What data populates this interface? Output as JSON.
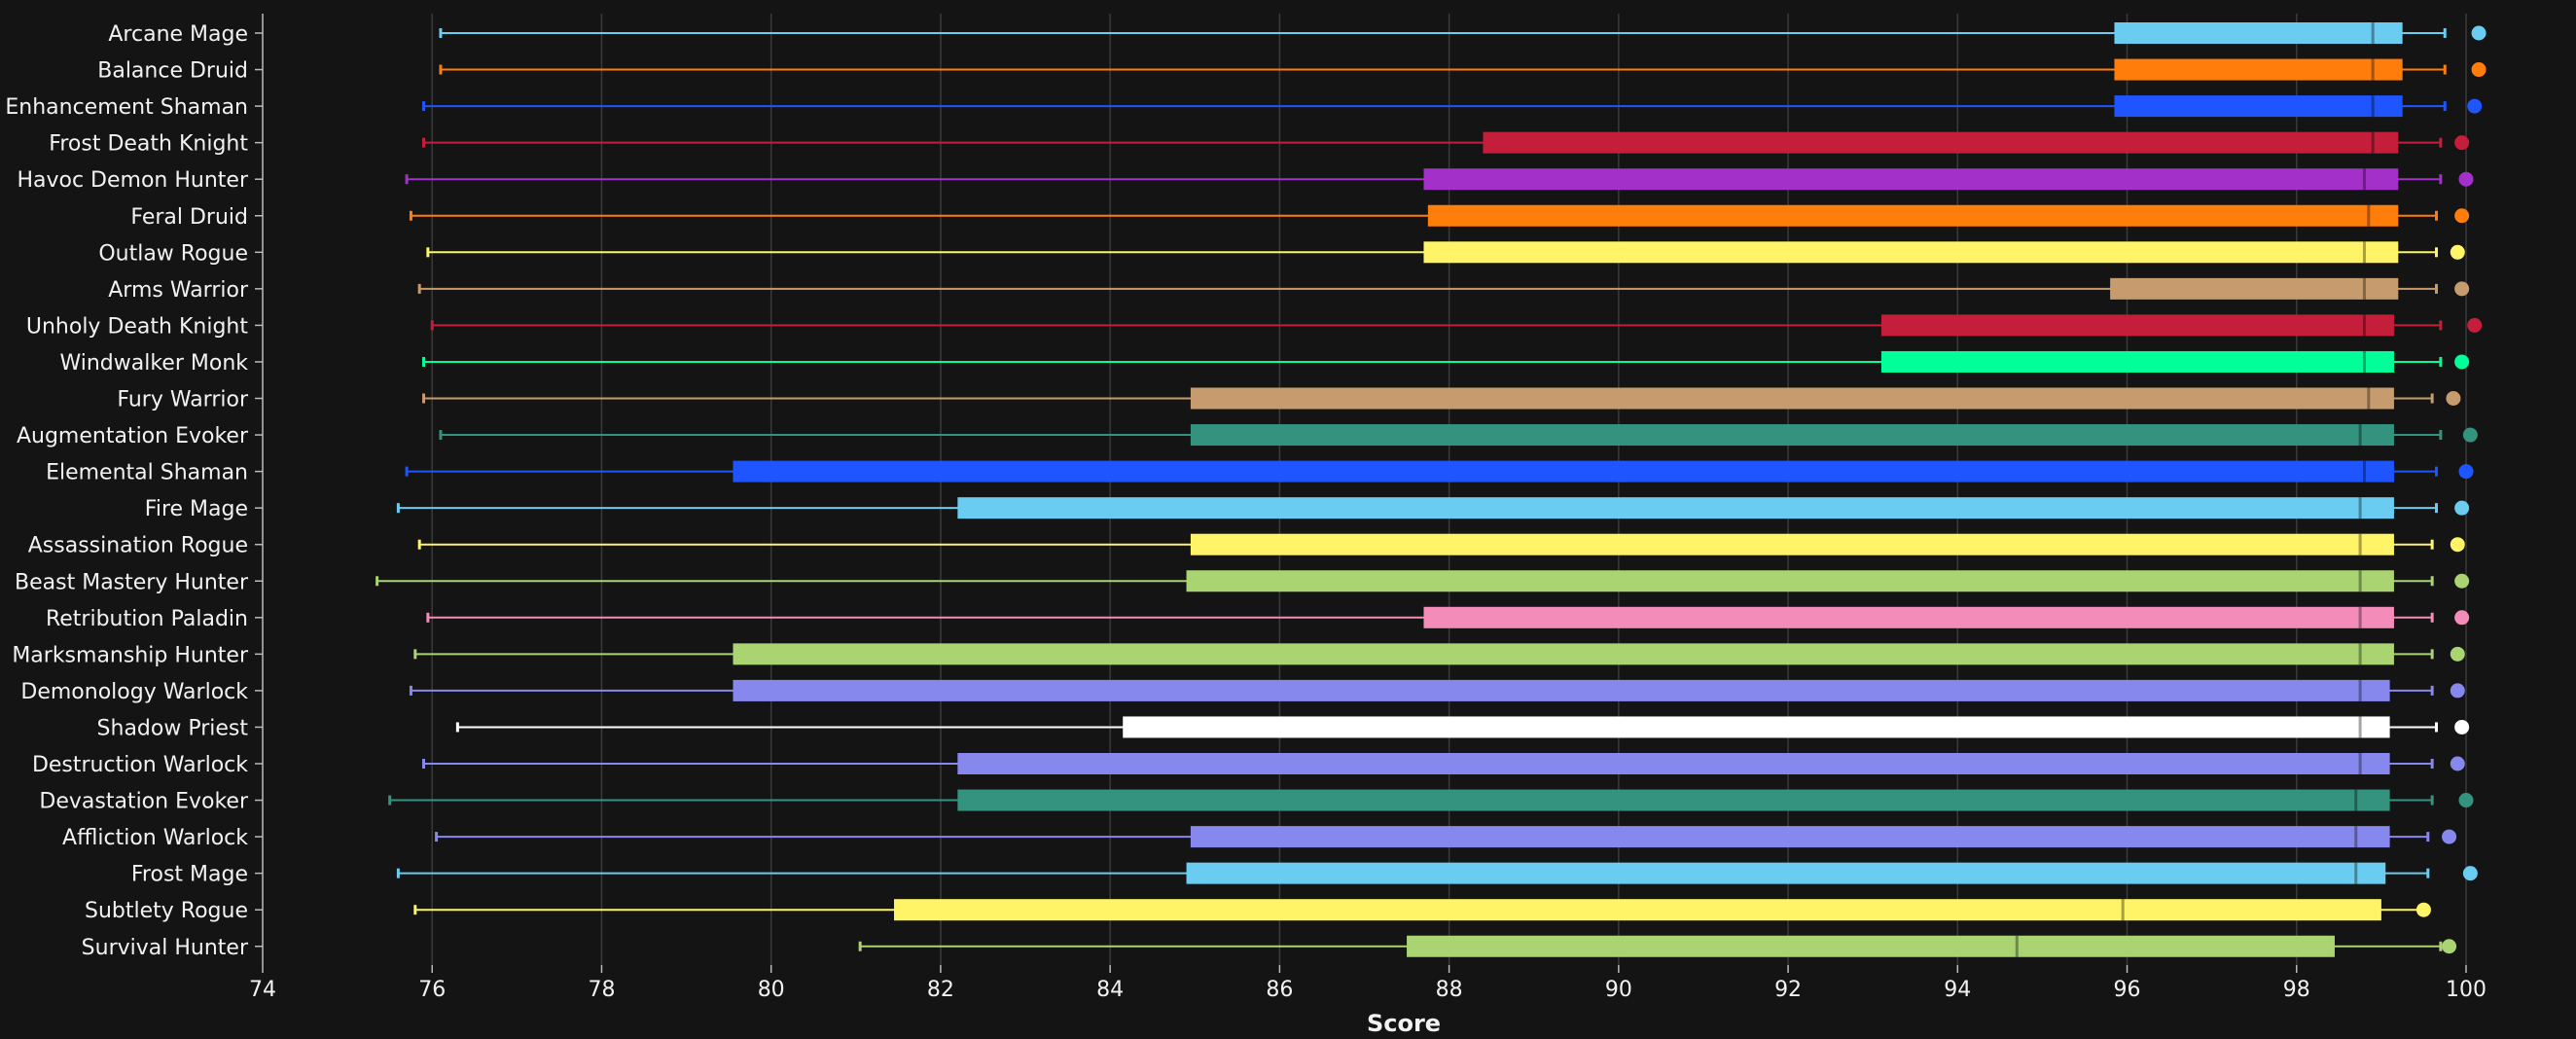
{
  "chart_data": {
    "type": "boxplot",
    "title": "",
    "xlabel": "Score",
    "ylabel": "",
    "xlim": [
      74,
      100
    ],
    "xticks": [
      74,
      76,
      78,
      80,
      82,
      84,
      86,
      88,
      90,
      92,
      94,
      96,
      98,
      100
    ],
    "grid": "vertical",
    "background": "#141414",
    "series": [
      {
        "name": "Arcane Mage",
        "color": "#69CCF0",
        "min": 76.1,
        "q1": 95.85,
        "median": 98.9,
        "q3": 99.25,
        "max": 99.75,
        "point": 100.15
      },
      {
        "name": "Balance Druid",
        "color": "#FF7D0A",
        "min": 76.1,
        "q1": 95.85,
        "median": 98.9,
        "q3": 99.25,
        "max": 99.75,
        "point": 100.15
      },
      {
        "name": "Enhancement Shaman",
        "color": "#1F55FF",
        "min": 75.9,
        "q1": 95.85,
        "median": 98.9,
        "q3": 99.25,
        "max": 99.75,
        "point": 100.1
      },
      {
        "name": "Frost Death Knight",
        "color": "#C41E3A",
        "min": 75.9,
        "q1": 88.4,
        "median": 98.9,
        "q3": 99.2,
        "max": 99.7,
        "point": 99.95
      },
      {
        "name": "Havoc Demon Hunter",
        "color": "#A330C9",
        "min": 75.7,
        "q1": 87.7,
        "median": 98.8,
        "q3": 99.2,
        "max": 99.7,
        "point": 100.0
      },
      {
        "name": "Feral Druid",
        "color": "#FF7D0A",
        "min": 75.75,
        "q1": 87.75,
        "median": 98.85,
        "q3": 99.2,
        "max": 99.65,
        "point": 99.95
      },
      {
        "name": "Outlaw Rogue",
        "color": "#FFF468",
        "min": 75.95,
        "q1": 87.7,
        "median": 98.8,
        "q3": 99.2,
        "max": 99.65,
        "point": 99.9
      },
      {
        "name": "Arms Warrior",
        "color": "#C69B6D",
        "min": 75.85,
        "q1": 95.8,
        "median": 98.8,
        "q3": 99.2,
        "max": 99.65,
        "point": 99.95
      },
      {
        "name": "Unholy Death Knight",
        "color": "#C41E3A",
        "min": 76.0,
        "q1": 93.1,
        "median": 98.8,
        "q3": 99.15,
        "max": 99.7,
        "point": 100.1
      },
      {
        "name": "Windwalker Monk",
        "color": "#00FF98",
        "min": 75.9,
        "q1": 93.1,
        "median": 98.8,
        "q3": 99.15,
        "max": 99.7,
        "point": 99.95
      },
      {
        "name": "Fury Warrior",
        "color": "#C69B6D",
        "min": 75.9,
        "q1": 84.95,
        "median": 98.85,
        "q3": 99.15,
        "max": 99.6,
        "point": 99.85
      },
      {
        "name": "Augmentation Evoker",
        "color": "#33937F",
        "min": 76.1,
        "q1": 84.95,
        "median": 98.75,
        "q3": 99.15,
        "max": 99.7,
        "point": 100.05
      },
      {
        "name": "Elemental Shaman",
        "color": "#1F55FF",
        "min": 75.7,
        "q1": 79.55,
        "median": 98.8,
        "q3": 99.15,
        "max": 99.65,
        "point": 100.0
      },
      {
        "name": "Fire Mage",
        "color": "#69CCF0",
        "min": 75.6,
        "q1": 82.2,
        "median": 98.75,
        "q3": 99.15,
        "max": 99.65,
        "point": 99.95
      },
      {
        "name": "Assassination Rogue",
        "color": "#FFF468",
        "min": 75.85,
        "q1": 84.95,
        "median": 98.75,
        "q3": 99.15,
        "max": 99.6,
        "point": 99.9
      },
      {
        "name": "Beast Mastery Hunter",
        "color": "#AAD372",
        "min": 75.35,
        "q1": 84.9,
        "median": 98.75,
        "q3": 99.15,
        "max": 99.6,
        "point": 99.95
      },
      {
        "name": "Retribution Paladin",
        "color": "#F48CBA",
        "min": 75.95,
        "q1": 87.7,
        "median": 98.75,
        "q3": 99.15,
        "max": 99.6,
        "point": 99.95
      },
      {
        "name": "Marksmanship Hunter",
        "color": "#AAD372",
        "min": 75.8,
        "q1": 79.55,
        "median": 98.75,
        "q3": 99.15,
        "max": 99.6,
        "point": 99.9
      },
      {
        "name": "Demonology Warlock",
        "color": "#8788EE",
        "min": 75.75,
        "q1": 79.55,
        "median": 98.75,
        "q3": 99.1,
        "max": 99.6,
        "point": 99.9
      },
      {
        "name": "Shadow Priest",
        "color": "#FFFFFF",
        "min": 76.3,
        "q1": 84.15,
        "median": 98.75,
        "q3": 99.1,
        "max": 99.65,
        "point": 99.95
      },
      {
        "name": "Destruction Warlock",
        "color": "#8788EE",
        "min": 75.9,
        "q1": 82.2,
        "median": 98.75,
        "q3": 99.1,
        "max": 99.6,
        "point": 99.9
      },
      {
        "name": "Devastation Evoker",
        "color": "#33937F",
        "min": 75.5,
        "q1": 82.2,
        "median": 98.7,
        "q3": 99.1,
        "max": 99.6,
        "point": 100.0
      },
      {
        "name": "Affliction Warlock",
        "color": "#8788EE",
        "min": 76.05,
        "q1": 84.95,
        "median": 98.7,
        "q3": 99.1,
        "max": 99.55,
        "point": 99.8
      },
      {
        "name": "Frost Mage",
        "color": "#69CCF0",
        "min": 75.6,
        "q1": 84.9,
        "median": 98.7,
        "q3": 99.05,
        "max": 99.55,
        "point": 100.05
      },
      {
        "name": "Subtlety Rogue",
        "color": "#FFF468",
        "min": 75.8,
        "q1": 81.45,
        "median": 95.95,
        "q3": 99.0,
        "max": 99.45,
        "point": 99.5
      },
      {
        "name": "Survival Hunter",
        "color": "#AAD372",
        "min": 81.05,
        "q1": 87.5,
        "median": 94.7,
        "q3": 98.45,
        "max": 99.7,
        "point": 99.8
      }
    ]
  }
}
